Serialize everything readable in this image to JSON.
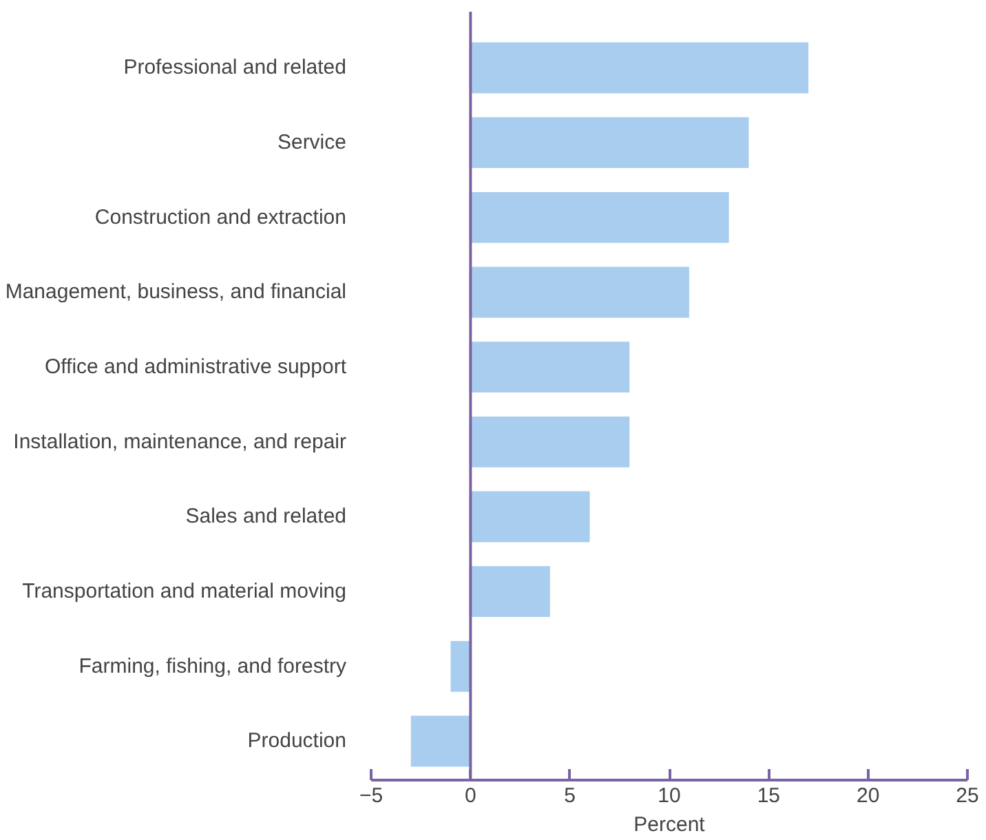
{
  "chart_data": {
    "type": "bar",
    "orientation": "horizontal",
    "xlabel": "Percent",
    "categories": [
      "Professional and related",
      "Service",
      "Construction and extraction",
      "Management, business, and financial",
      "Office and administrative support",
      "Installation, maintenance, and repair",
      "Sales and related",
      "Transportation and material moving",
      "Farming, fishing, and forestry",
      "Production"
    ],
    "values": [
      17,
      14,
      13,
      11,
      8,
      8,
      6,
      4,
      -1,
      -3
    ],
    "color": "#a9cdee",
    "xlim": [
      -5,
      25
    ],
    "xticks": [
      "−5",
      0,
      5,
      10,
      15,
      20,
      25
    ],
    "ref_lines": [
      {
        "axis": "x",
        "value": 0,
        "color": "#7a62a3"
      }
    ],
    "grid": false
  }
}
